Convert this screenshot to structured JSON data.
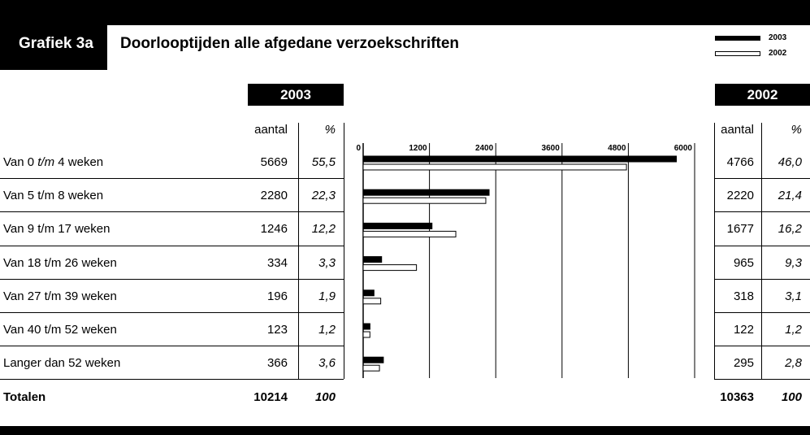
{
  "header": {
    "label": "Grafiek 3a",
    "title": "Doorlooptijden alle afgedane verzoekschriften"
  },
  "legend": [
    {
      "name": "2003",
      "color": "#000000"
    },
    {
      "name": "2002",
      "color": "#ffffff"
    }
  ],
  "table": {
    "year_left": "2003",
    "year_right": "2002",
    "col_aantal": "aantal",
    "col_pct": "%",
    "rows": [
      {
        "label_pre": "Van 0 ",
        "label_ital": "t/m",
        "label_post": " 4 weken",
        "n2003": "5669",
        "p2003": "55,5",
        "n2002": "4766",
        "p2002": "46,0"
      },
      {
        "label_pre": "Van 5 t/m 8 weken",
        "label_ital": "",
        "label_post": "",
        "n2003": "2280",
        "p2003": "22,3",
        "n2002": "2220",
        "p2002": "21,4"
      },
      {
        "label_pre": "Van 9 t/m 17 weken",
        "label_ital": "",
        "label_post": "",
        "n2003": "1246",
        "p2003": "12,2",
        "n2002": "1677",
        "p2002": "16,2"
      },
      {
        "label_pre": "Van 18 t/m 26 weken",
        "label_ital": "",
        "label_post": "",
        "n2003": "334",
        "p2003": "3,3",
        "n2002": "965",
        "p2002": "9,3"
      },
      {
        "label_pre": "Van 27 t/m 39 weken",
        "label_ital": "",
        "label_post": "",
        "n2003": "196",
        "p2003": "1,9",
        "n2002": "318",
        "p2002": "3,1"
      },
      {
        "label_pre": "Van 40 t/m 52 weken",
        "label_ital": "",
        "label_post": "",
        "n2003": "123",
        "p2003": "1,2",
        "n2002": "122",
        "p2002": "1,2"
      },
      {
        "label_pre": "Langer dan 52 weken",
        "label_ital": "",
        "label_post": "",
        "n2003": "366",
        "p2003": "3,6",
        "n2002": "295",
        "p2002": "2,8"
      }
    ],
    "totals": {
      "label": "Totalen",
      "n2003": "10214",
      "p2003": "100",
      "n2002": "10363",
      "p2002": "100"
    }
  },
  "chart_data": {
    "type": "bar",
    "orientation": "horizontal",
    "categories": [
      "Van 0 t/m 4 weken",
      "Van 5 t/m 8 weken",
      "Van 9 t/m 17 weken",
      "Van 18 t/m 26 weken",
      "Van 27 t/m 39 weken",
      "Van 40 t/m 52 weken",
      "Langer dan 52 weken"
    ],
    "series": [
      {
        "name": "2003",
        "values": [
          5669,
          2280,
          1246,
          334,
          196,
          123,
          366
        ]
      },
      {
        "name": "2002",
        "values": [
          4766,
          2220,
          1677,
          965,
          318,
          122,
          295
        ]
      }
    ],
    "xlim": [
      0,
      6000
    ],
    "xticks": [
      0,
      1200,
      2400,
      3600,
      4800,
      6000
    ],
    "xtick_labels": [
      "0",
      "1200",
      "2400",
      "3600",
      "4800",
      "6000"
    ],
    "grid": true,
    "legend": "top-right"
  }
}
